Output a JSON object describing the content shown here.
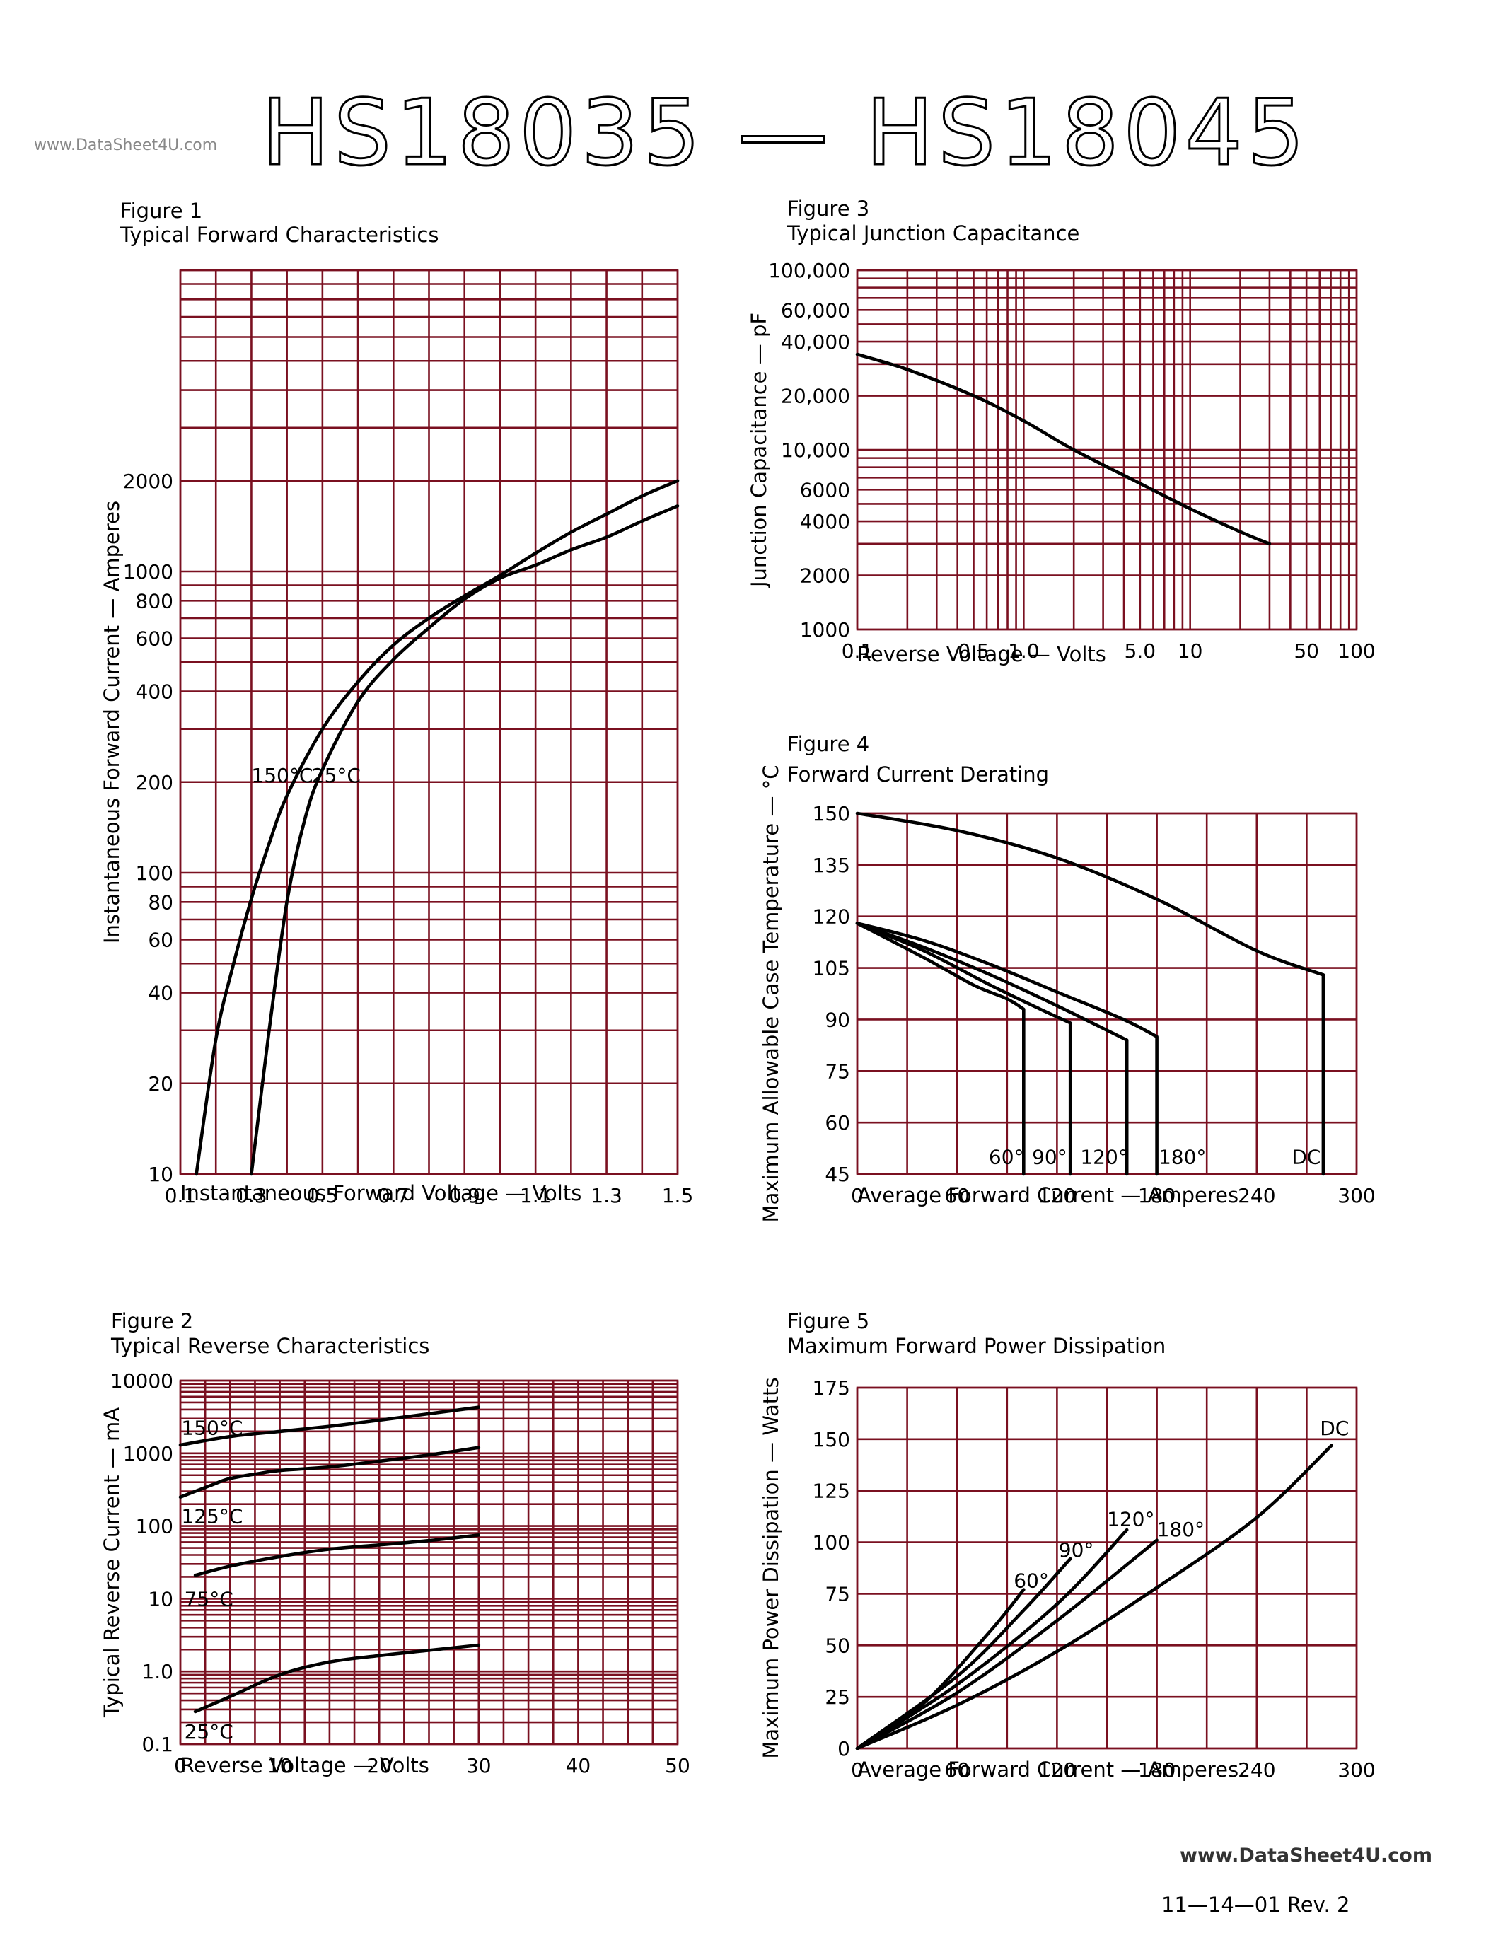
{
  "page": {
    "title": "HS18035 — HS18045",
    "watermark_top": "www.DataSheet4U.com",
    "watermark_bottom": "www.DataSheet4U.com",
    "revision": "11—14—01   Rev. 2"
  },
  "chart_data": [
    {
      "id": "fig1",
      "type": "line",
      "figure_label": "Figure 1",
      "title": "Typical Forward Characteristics",
      "xlabel": "Instantaneous Forward Voltage — Volts",
      "ylabel": "Instantaneous Forward Current — Amperes",
      "xlim": [
        0.1,
        1.5
      ],
      "ylim": [
        10,
        10000
      ],
      "yscale": "log",
      "grid": true,
      "x_ticks": [
        {
          "v": 0.1,
          "label": "0.1"
        },
        {
          "v": 0.3,
          "label": "0.3"
        },
        {
          "v": 0.5,
          "label": "0.5"
        },
        {
          "v": 0.7,
          "label": "0.7"
        },
        {
          "v": 0.9,
          "label": "0.9"
        },
        {
          "v": 1.1,
          "label": "1.1"
        },
        {
          "v": 1.3,
          "label": "1.3"
        },
        {
          "v": 1.5,
          "label": "1.5"
        }
      ],
      "y_ticks": [
        {
          "v": 10,
          "label": "10"
        },
        {
          "v": 20,
          "label": "20"
        },
        {
          "v": 40,
          "label": "40"
        },
        {
          "v": 60,
          "label": "60"
        },
        {
          "v": 80,
          "label": "80"
        },
        {
          "v": 100,
          "label": "100"
        },
        {
          "v": 200,
          "label": "200"
        },
        {
          "v": 400,
          "label": "400"
        },
        {
          "v": 600,
          "label": "600"
        },
        {
          "v": 800,
          "label": "800"
        },
        {
          "v": 1000,
          "label": "1000"
        },
        {
          "v": 2000,
          "label": "2000"
        }
      ],
      "series": [
        {
          "name": "150°C",
          "x": [
            0.145,
            0.2,
            0.25,
            0.3,
            0.35,
            0.4,
            0.5,
            0.6,
            0.7,
            0.8,
            0.9,
            1.0,
            1.1,
            1.2,
            1.3,
            1.4,
            1.5
          ],
          "y": [
            10,
            28,
            50,
            82,
            125,
            180,
            300,
            430,
            570,
            700,
            830,
            970,
            1150,
            1350,
            1550,
            1780,
            2000
          ]
        },
        {
          "name": "25°C",
          "x": [
            0.3,
            0.35,
            0.4,
            0.45,
            0.5,
            0.6,
            0.7,
            0.8,
            0.9,
            1.0,
            1.1,
            1.2,
            1.3,
            1.4,
            1.5
          ],
          "y": [
            10,
            30,
            80,
            150,
            220,
            370,
            510,
            650,
            810,
            950,
            1050,
            1180,
            1300,
            1470,
            1650
          ]
        }
      ],
      "series_labels": [
        {
          "text": "150°C",
          "x": 0.3,
          "y": 200
        },
        {
          "text": "25°C",
          "x": 0.47,
          "y": 200
        }
      ]
    },
    {
      "id": "fig2",
      "type": "line",
      "figure_label": "Figure 2",
      "title": "Typical Reverse Characteristics",
      "xlabel": "Reverse Voltage — Volts",
      "ylabel": "Typical Reverse Current — mA",
      "xlim": [
        0,
        50
      ],
      "ylim": [
        0.1,
        10000
      ],
      "yscale": "log",
      "grid": true,
      "x_ticks": [
        {
          "v": 0,
          "label": "0"
        },
        {
          "v": 10,
          "label": "10"
        },
        {
          "v": 20,
          "label": "20"
        },
        {
          "v": 30,
          "label": "30"
        },
        {
          "v": 40,
          "label": "40"
        },
        {
          "v": 50,
          "label": "50"
        }
      ],
      "y_ticks": [
        {
          "v": 0.1,
          "label": "0.1"
        },
        {
          "v": 1,
          "label": "1.0"
        },
        {
          "v": 10,
          "label": "10"
        },
        {
          "v": 100,
          "label": "100"
        },
        {
          "v": 1000,
          "label": "1000"
        },
        {
          "v": 10000,
          "label": "10000"
        }
      ],
      "series": [
        {
          "name": "150°C",
          "x": [
            0,
            5,
            10,
            15,
            20,
            25,
            30
          ],
          "y": [
            1300,
            1700,
            2000,
            2350,
            2850,
            3500,
            4300
          ]
        },
        {
          "name": "125°C",
          "x": [
            0,
            3,
            5,
            8,
            10,
            15,
            20,
            25,
            30
          ],
          "y": [
            250,
            360,
            450,
            530,
            580,
            650,
            780,
            950,
            1200
          ]
        },
        {
          "name": "75°C",
          "x": [
            1.5,
            5,
            10,
            15,
            20,
            25,
            30
          ],
          "y": [
            21,
            28,
            38,
            48,
            55,
            63,
            75
          ]
        },
        {
          "name": "25°C",
          "x": [
            1.5,
            5,
            10,
            15,
            20,
            25,
            30
          ],
          "y": [
            0.28,
            0.45,
            0.9,
            1.35,
            1.65,
            1.95,
            2.3
          ]
        }
      ],
      "series_labels": [
        {
          "text": "150°C",
          "x": 0.1,
          "y": 1800
        },
        {
          "text": "125°C",
          "x": 0.1,
          "y": 110
        },
        {
          "text": "75°C",
          "x": 0.4,
          "y": 8
        },
        {
          "text": "25°C",
          "x": 0.4,
          "y": 0.12
        }
      ]
    },
    {
      "id": "fig3",
      "type": "line",
      "figure_label": "Figure 3",
      "title": "Typical Junction Capacitance",
      "xlabel": "Reverse Voltage — Volts",
      "ylabel": "Junction Capacitance — pF",
      "xlim": [
        0.1,
        100
      ],
      "ylim": [
        1000,
        100000
      ],
      "xscale": "log",
      "yscale": "log",
      "grid": true,
      "x_ticks": [
        {
          "v": 0.1,
          "label": "0.1"
        },
        {
          "v": 0.5,
          "label": "0.5"
        },
        {
          "v": 1,
          "label": "1.0"
        },
        {
          "v": 5,
          "label": "5.0"
        },
        {
          "v": 10,
          "label": "10"
        },
        {
          "v": 50,
          "label": "50"
        },
        {
          "v": 100,
          "label": "100"
        }
      ],
      "y_ticks": [
        {
          "v": 1000,
          "label": "1000"
        },
        {
          "v": 2000,
          "label": "2000"
        },
        {
          "v": 4000,
          "label": "4000"
        },
        {
          "v": 6000,
          "label": "6000"
        },
        {
          "v": 10000,
          "label": "10,000"
        },
        {
          "v": 20000,
          "label": "20,000"
        },
        {
          "v": 40000,
          "label": "40,000"
        },
        {
          "v": 60000,
          "label": "60,000"
        },
        {
          "v": 100000,
          "label": "100,000"
        }
      ],
      "series": [
        {
          "name": "",
          "x": [
            0.1,
            0.2,
            0.5,
            1,
            2,
            5,
            10,
            20,
            30
          ],
          "y": [
            34000,
            28000,
            20000,
            14500,
            10000,
            6500,
            4700,
            3500,
            3000
          ]
        }
      ],
      "series_labels": []
    },
    {
      "id": "fig4",
      "type": "line",
      "figure_label": "Figure 4",
      "title": "Forward Current Derating",
      "xlabel": "Average Forward Current — Amperes",
      "ylabel": "Maximum Allowable Case Temperature — °C",
      "xlim": [
        0,
        300
      ],
      "ylim": [
        45,
        150
      ],
      "grid": true,
      "x_ticks": [
        {
          "v": 0,
          "label": "0"
        },
        {
          "v": 60,
          "label": "60"
        },
        {
          "v": 120,
          "label": "120"
        },
        {
          "v": 180,
          "label": "180"
        },
        {
          "v": 240,
          "label": "240"
        },
        {
          "v": 300,
          "label": "300"
        }
      ],
      "y_ticks": [
        {
          "v": 45,
          "label": "45"
        },
        {
          "v": 60,
          "label": "60"
        },
        {
          "v": 75,
          "label": "75"
        },
        {
          "v": 90,
          "label": "90"
        },
        {
          "v": 105,
          "label": "105"
        },
        {
          "v": 120,
          "label": "120"
        },
        {
          "v": 135,
          "label": "135"
        },
        {
          "v": 150,
          "label": "150"
        }
      ],
      "series": [
        {
          "name": "DC",
          "x": [
            0,
            60,
            120,
            180,
            240,
            280,
            280
          ],
          "y": [
            150,
            145,
            137,
            125,
            110,
            103,
            45
          ]
        },
        {
          "name": "180°",
          "x": [
            0,
            40,
            80,
            120,
            160,
            180,
            180
          ],
          "y": [
            118,
            113,
            106,
            98,
            90,
            85,
            45
          ]
        },
        {
          "name": "120°",
          "x": [
            0,
            40,
            80,
            120,
            162,
            162
          ],
          "y": [
            118,
            111,
            103,
            94,
            84,
            45
          ]
        },
        {
          "name": "90°",
          "x": [
            0,
            40,
            80,
            110,
            128,
            128
          ],
          "y": [
            118,
            110,
            100,
            93,
            89,
            45
          ]
        },
        {
          "name": "60°",
          "x": [
            0,
            40,
            70,
            90,
            100,
            100
          ],
          "y": [
            118,
            108,
            100,
            96,
            93,
            45
          ]
        }
      ],
      "series_labels": [
        {
          "text": "60°",
          "x": 79,
          "y": 48
        },
        {
          "text": "90°",
          "x": 105,
          "y": 48
        },
        {
          "text": "120°",
          "x": 134,
          "y": 48
        },
        {
          "text": "180°",
          "x": 181,
          "y": 48
        },
        {
          "text": "DC",
          "x": 261,
          "y": 48
        }
      ]
    },
    {
      "id": "fig5",
      "type": "line",
      "figure_label": "Figure 5",
      "title": "Maximum Forward Power Dissipation",
      "xlabel": "Average Forward Current — Amperes",
      "ylabel": "Maximum Power Dissipation — Watts",
      "xlim": [
        0,
        300
      ],
      "ylim": [
        0,
        175
      ],
      "grid": true,
      "x_ticks": [
        {
          "v": 0,
          "label": "0"
        },
        {
          "v": 60,
          "label": "60"
        },
        {
          "v": 120,
          "label": "120"
        },
        {
          "v": 180,
          "label": "180"
        },
        {
          "v": 240,
          "label": "240"
        },
        {
          "v": 300,
          "label": "300"
        }
      ],
      "y_ticks": [
        {
          "v": 0,
          "label": "0"
        },
        {
          "v": 25,
          "label": "25"
        },
        {
          "v": 50,
          "label": "50"
        },
        {
          "v": 75,
          "label": "75"
        },
        {
          "v": 100,
          "label": "100"
        },
        {
          "v": 125,
          "label": "125"
        },
        {
          "v": 150,
          "label": "150"
        },
        {
          "v": 175,
          "label": "175"
        }
      ],
      "series": [
        {
          "name": "DC",
          "x": [
            0,
            60,
            120,
            180,
            240,
            285
          ],
          "y": [
            0,
            21,
            47,
            78,
            112,
            147
          ]
        },
        {
          "name": "180°",
          "x": [
            0,
            60,
            120,
            180
          ],
          "y": [
            0,
            27,
            62,
            101
          ]
        },
        {
          "name": "120°",
          "x": [
            0,
            60,
            120,
            162
          ],
          "y": [
            0,
            31,
            70,
            106
          ]
        },
        {
          "name": "90°",
          "x": [
            0,
            60,
            100,
            128
          ],
          "y": [
            0,
            35,
            67,
            92
          ]
        },
        {
          "name": "60°",
          "x": [
            0,
            40,
            80,
            100
          ],
          "y": [
            0,
            22,
            57,
            77
          ]
        }
      ],
      "series_labels": [
        {
          "text": "60°",
          "x": 94,
          "y": 78
        },
        {
          "text": "90°",
          "x": 121,
          "y": 93
        },
        {
          "text": "120°",
          "x": 150,
          "y": 108
        },
        {
          "text": "180°",
          "x": 180,
          "y": 103
        },
        {
          "text": "DC",
          "x": 278,
          "y": 152
        }
      ]
    }
  ]
}
